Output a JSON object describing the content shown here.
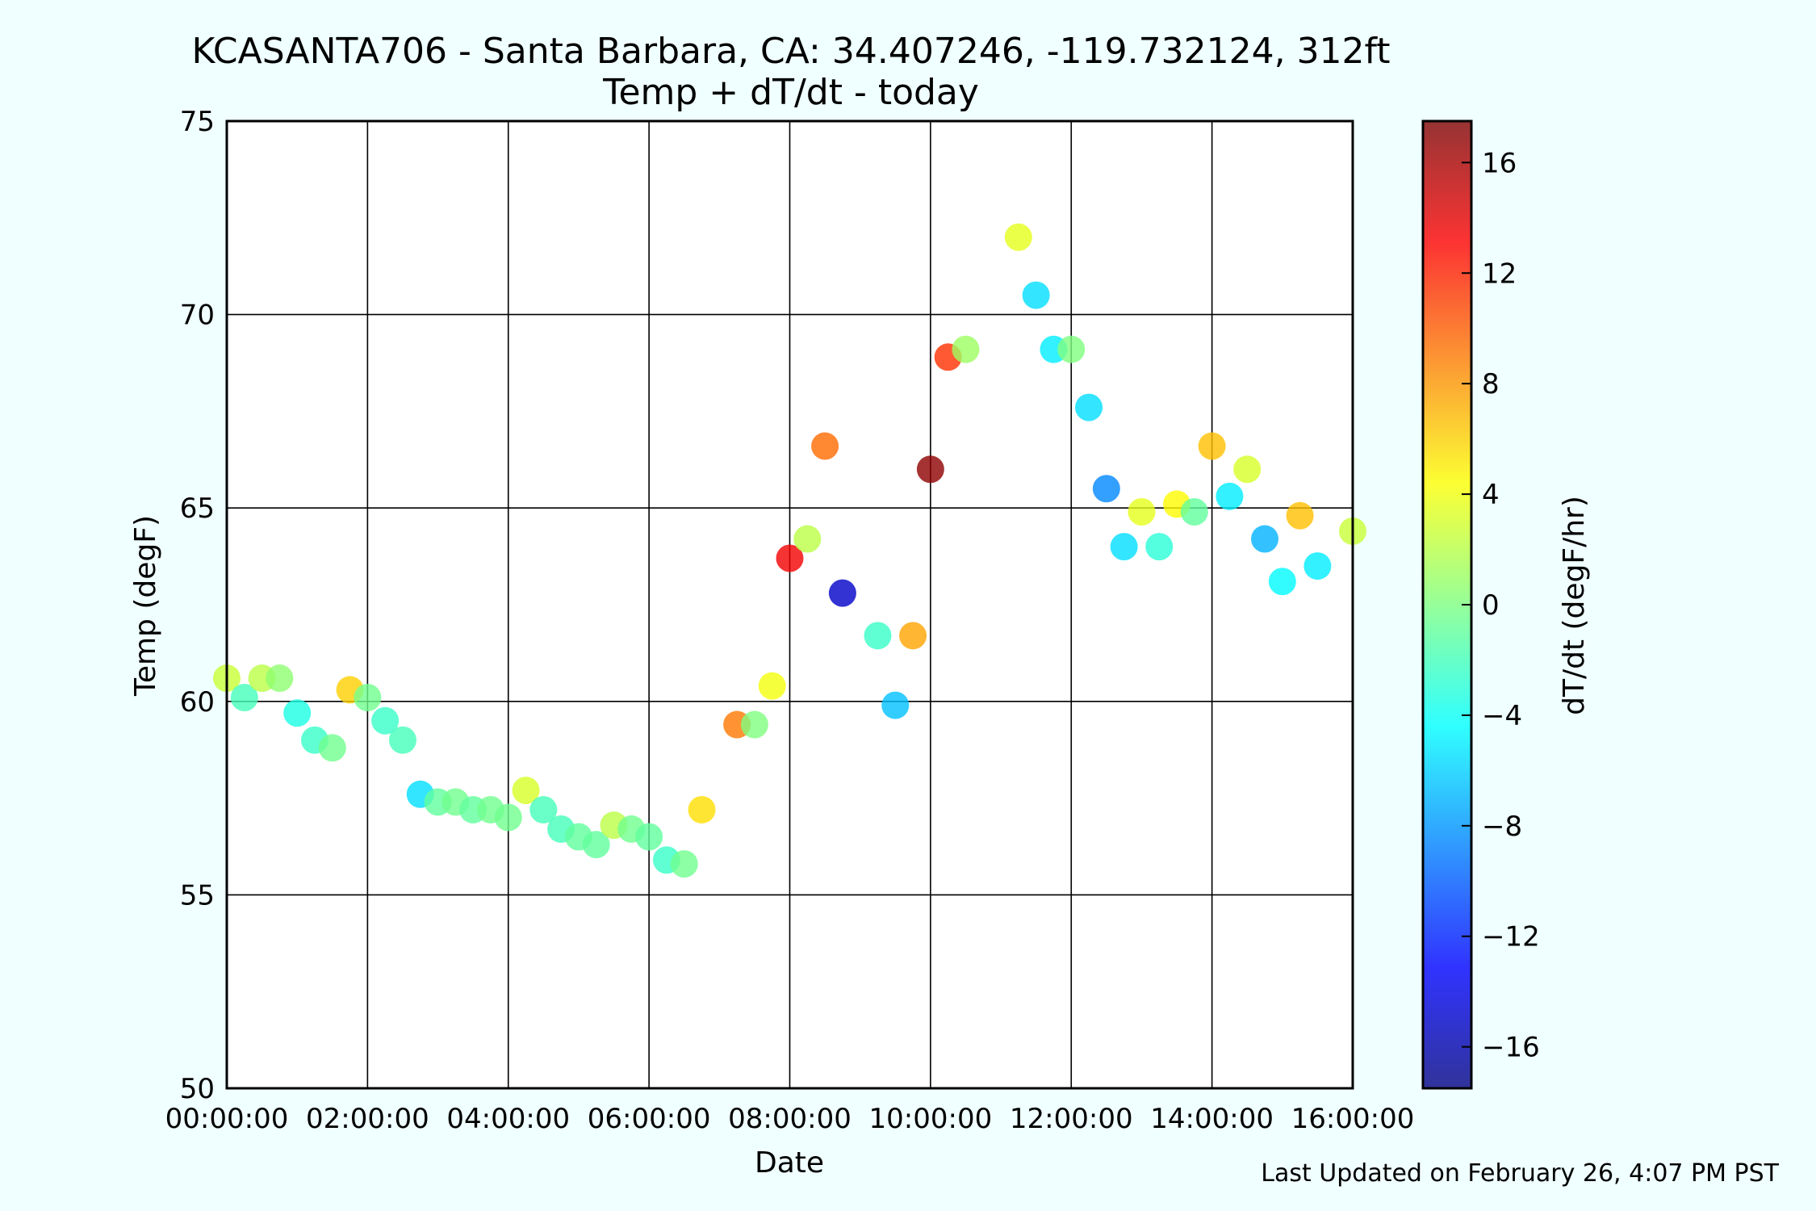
{
  "chart_data": {
    "type": "scatter",
    "title": "KCASANTA706 - Santa Barbara, CA: 34.407246, -119.732124, 312ft",
    "subtitle": "Temp + dT/dt - today",
    "xlabel": "Date",
    "ylabel": "Temp (degF)",
    "xlim": [
      "00:00:00",
      "16:00:00"
    ],
    "ylim": [
      50,
      75
    ],
    "xticks": [
      "00:00:00",
      "02:00:00",
      "04:00:00",
      "06:00:00",
      "08:00:00",
      "10:00:00",
      "12:00:00",
      "14:00:00",
      "16:00:00"
    ],
    "yticks": [
      50,
      55,
      60,
      65,
      70,
      75
    ],
    "grid": true,
    "colormap": "jet",
    "colorbar": {
      "label": "dT/dt (degF/hr)",
      "range": [
        -17.5,
        17.5
      ],
      "ticks": [
        16,
        12,
        8,
        4,
        0,
        -4,
        -8,
        -12,
        -16
      ],
      "tick_labels": [
        "16",
        "12",
        "8",
        "4",
        "0",
        "−4",
        "−8",
        "−12",
        "−16"
      ]
    },
    "points": [
      {
        "time": "00:00",
        "temp": 60.6,
        "dtdt": 2.5
      },
      {
        "time": "00:15",
        "temp": 60.1,
        "dtdt": -2.0
      },
      {
        "time": "00:30",
        "temp": 60.6,
        "dtdt": 2.0
      },
      {
        "time": "00:45",
        "temp": 60.6,
        "dtdt": 0.5
      },
      {
        "time": "01:00",
        "temp": 59.7,
        "dtdt": -3.5
      },
      {
        "time": "01:15",
        "temp": 59.0,
        "dtdt": -2.5
      },
      {
        "time": "01:30",
        "temp": 58.8,
        "dtdt": -0.5
      },
      {
        "time": "01:45",
        "temp": 60.3,
        "dtdt": 6.0
      },
      {
        "time": "02:00",
        "temp": 60.1,
        "dtdt": -0.5
      },
      {
        "time": "02:15",
        "temp": 59.5,
        "dtdt": -2.5
      },
      {
        "time": "02:30",
        "temp": 59.0,
        "dtdt": -2.0
      },
      {
        "time": "02:45",
        "temp": 57.6,
        "dtdt": -5.5
      },
      {
        "time": "03:00",
        "temp": 57.4,
        "dtdt": -1.0
      },
      {
        "time": "03:15",
        "temp": 57.4,
        "dtdt": -0.5
      },
      {
        "time": "03:30",
        "temp": 57.2,
        "dtdt": -1.0
      },
      {
        "time": "03:45",
        "temp": 57.2,
        "dtdt": -0.5
      },
      {
        "time": "04:00",
        "temp": 57.0,
        "dtdt": -0.5
      },
      {
        "time": "04:15",
        "temp": 57.7,
        "dtdt": 3.0
      },
      {
        "time": "04:30",
        "temp": 57.2,
        "dtdt": -2.0
      },
      {
        "time": "04:45",
        "temp": 56.7,
        "dtdt": -2.0
      },
      {
        "time": "05:00",
        "temp": 56.5,
        "dtdt": -1.0
      },
      {
        "time": "05:15",
        "temp": 56.3,
        "dtdt": -1.0
      },
      {
        "time": "05:30",
        "temp": 56.8,
        "dtdt": 2.0
      },
      {
        "time": "05:45",
        "temp": 56.7,
        "dtdt": -0.5
      },
      {
        "time": "06:00",
        "temp": 56.5,
        "dtdt": -1.0
      },
      {
        "time": "06:15",
        "temp": 55.9,
        "dtdt": -2.5
      },
      {
        "time": "06:30",
        "temp": 55.8,
        "dtdt": -0.5
      },
      {
        "time": "06:45",
        "temp": 57.2,
        "dtdt": 5.5
      },
      {
        "time": "07:15",
        "temp": 59.4,
        "dtdt": 9.0
      },
      {
        "time": "07:30",
        "temp": 59.4,
        "dtdt": 0.0
      },
      {
        "time": "07:45",
        "temp": 60.4,
        "dtdt": 4.0
      },
      {
        "time": "08:00",
        "temp": 63.7,
        "dtdt": 13.5
      },
      {
        "time": "08:15",
        "temp": 64.2,
        "dtdt": 2.0
      },
      {
        "time": "08:30",
        "temp": 66.6,
        "dtdt": 9.5
      },
      {
        "time": "08:45",
        "temp": 62.8,
        "dtdt": -15.0
      },
      {
        "time": "09:15",
        "temp": 61.7,
        "dtdt": -2.5
      },
      {
        "time": "09:30",
        "temp": 59.9,
        "dtdt": -6.5
      },
      {
        "time": "09:45",
        "temp": 61.7,
        "dtdt": 7.5
      },
      {
        "time": "10:00",
        "temp": 66.0,
        "dtdt": 17.0
      },
      {
        "time": "10:15",
        "temp": 68.9,
        "dtdt": 11.5
      },
      {
        "time": "10:30",
        "temp": 69.1,
        "dtdt": 1.0
      },
      {
        "time": "11:15",
        "temp": 72.0,
        "dtdt": 3.5
      },
      {
        "time": "11:30",
        "temp": 70.5,
        "dtdt": -5.5
      },
      {
        "time": "11:45",
        "temp": 69.1,
        "dtdt": -5.0
      },
      {
        "time": "12:00",
        "temp": 69.1,
        "dtdt": 0.0
      },
      {
        "time": "12:15",
        "temp": 67.6,
        "dtdt": -5.5
      },
      {
        "time": "12:30",
        "temp": 65.5,
        "dtdt": -8.5
      },
      {
        "time": "12:45",
        "temp": 64.0,
        "dtdt": -5.5
      },
      {
        "time": "13:00",
        "temp": 64.9,
        "dtdt": 3.5
      },
      {
        "time": "13:15",
        "temp": 64.0,
        "dtdt": -3.0
      },
      {
        "time": "13:30",
        "temp": 65.1,
        "dtdt": 4.5
      },
      {
        "time": "13:45",
        "temp": 64.9,
        "dtdt": -1.0
      },
      {
        "time": "14:00",
        "temp": 66.6,
        "dtdt": 6.5
      },
      {
        "time": "14:15",
        "temp": 65.3,
        "dtdt": -5.0
      },
      {
        "time": "14:30",
        "temp": 66.0,
        "dtdt": 3.0
      },
      {
        "time": "14:45",
        "temp": 64.2,
        "dtdt": -7.0
      },
      {
        "time": "15:00",
        "temp": 63.1,
        "dtdt": -4.5
      },
      {
        "time": "15:15",
        "temp": 64.8,
        "dtdt": 6.5
      },
      {
        "time": "15:30",
        "temp": 63.5,
        "dtdt": -5.0
      },
      {
        "time": "16:00",
        "temp": 64.4,
        "dtdt": 2.5
      }
    ]
  },
  "footer": {
    "updated": "Last Updated on February 26, 4:07 PM PST"
  }
}
